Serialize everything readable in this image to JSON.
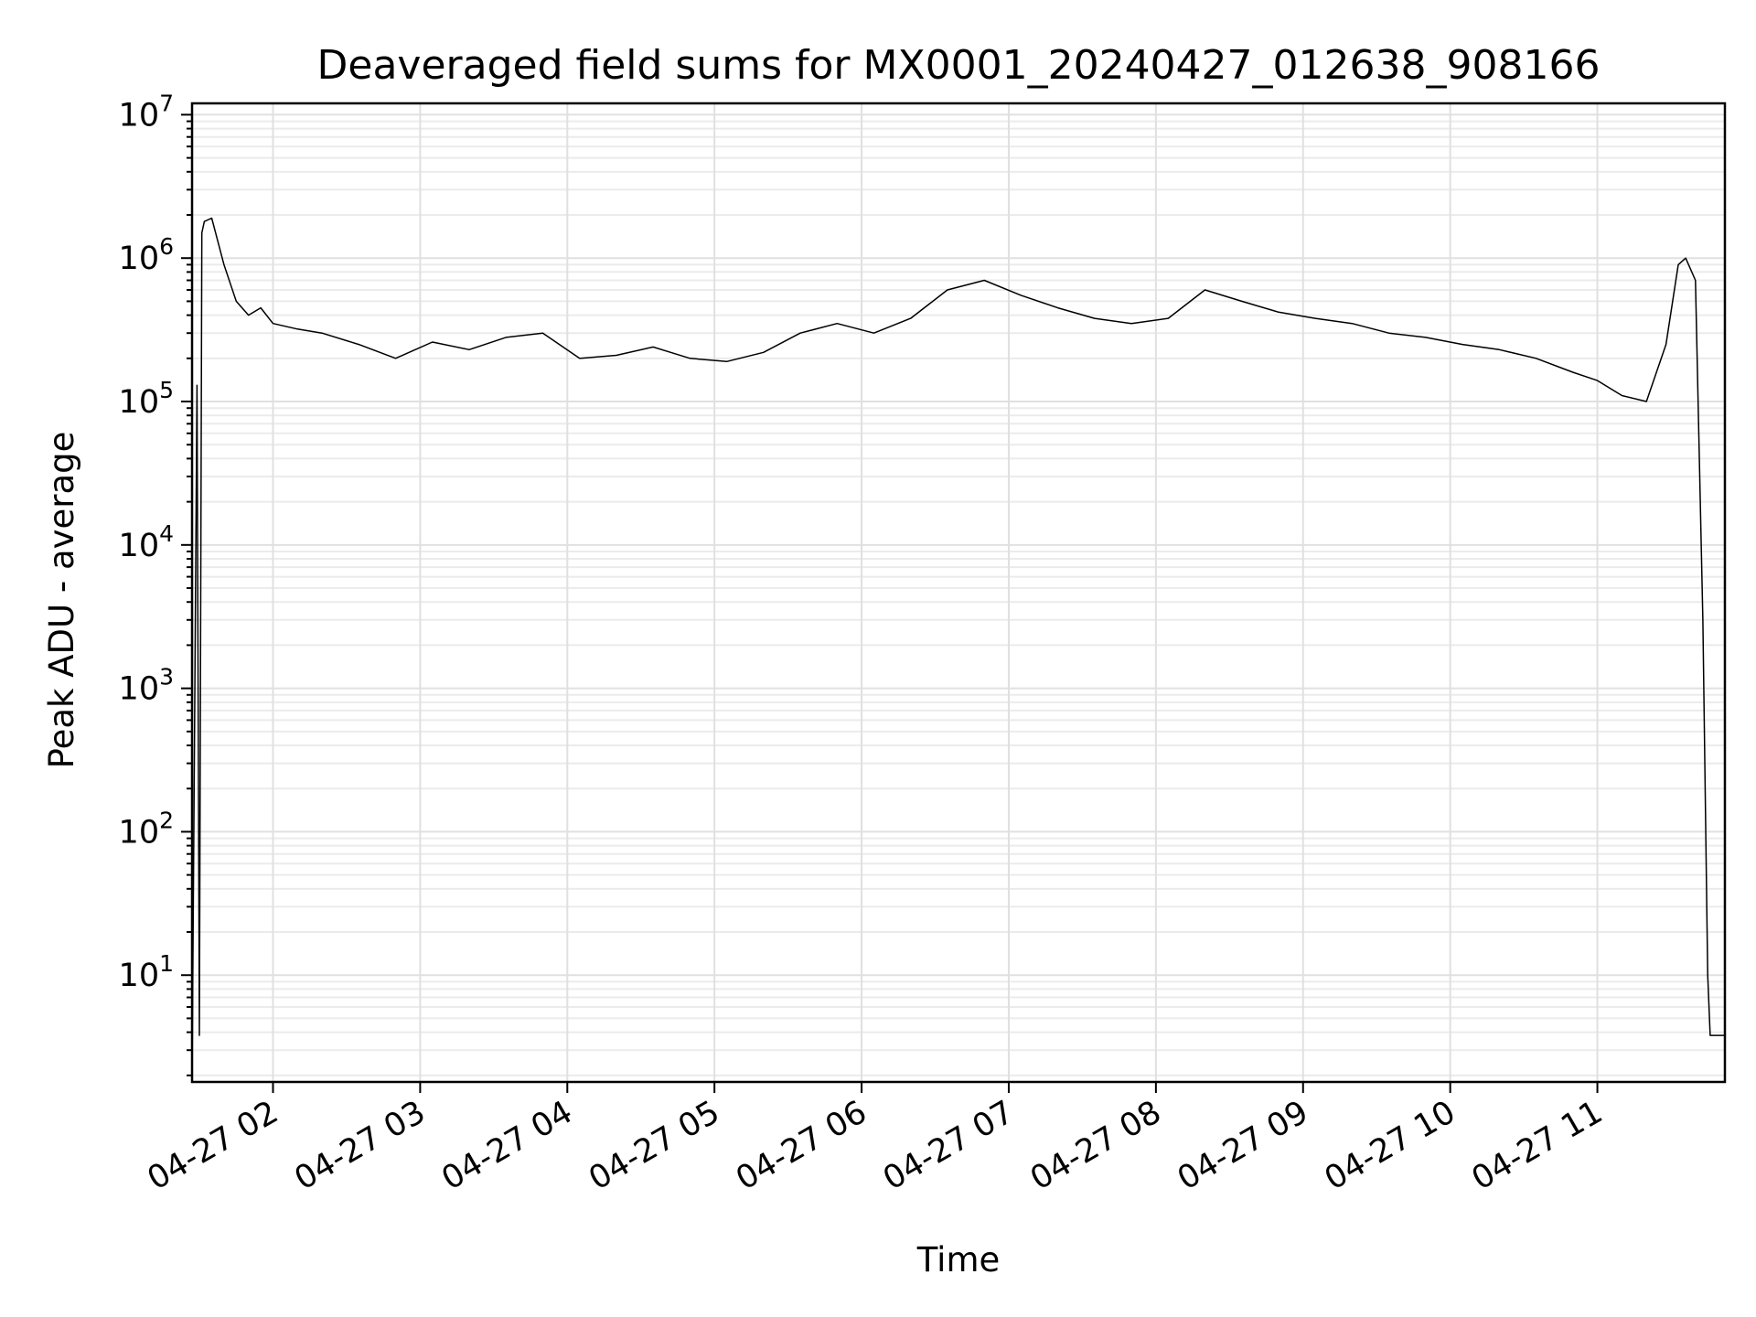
{
  "chart_data": {
    "type": "line",
    "title": "Deaveraged field sums for MX0001_20240427_012638_908166",
    "xlabel": "Time",
    "ylabel": "Peak ADU - average",
    "yscale": "log",
    "ylim": [
      1.8,
      12000000
    ],
    "xlim": [
      "2024-04-27 01:27",
      "2024-04-27 11:52"
    ],
    "x_ticks": [
      "04-27 02",
      "04-27 03",
      "04-27 04",
      "04-27 05",
      "04-27 06",
      "04-27 07",
      "04-27 08",
      "04-27 09",
      "04-27 10",
      "04-27 11"
    ],
    "y_ticks": [
      10,
      100,
      1000,
      10000,
      100000,
      1000000,
      10000000
    ],
    "y_tick_labels": [
      {
        "base": "10",
        "exp": "1"
      },
      {
        "base": "10",
        "exp": "2"
      },
      {
        "base": "10",
        "exp": "3"
      },
      {
        "base": "10",
        "exp": "4"
      },
      {
        "base": "10",
        "exp": "5"
      },
      {
        "base": "10",
        "exp": "6"
      },
      {
        "base": "10",
        "exp": "7"
      }
    ],
    "grid": true,
    "legend": "none",
    "line_color": "#000000",
    "grid_color": "#e0e0e0",
    "series": [
      {
        "x": [
          "2024-04-27 01:27",
          "2024-04-27 01:29",
          "2024-04-27 01:30",
          "2024-04-27 01:31",
          "2024-04-27 01:32",
          "2024-04-27 01:35",
          "2024-04-27 01:40",
          "2024-04-27 01:45",
          "2024-04-27 01:50",
          "2024-04-27 01:55",
          "2024-04-27 02:00",
          "2024-04-27 02:10",
          "2024-04-27 02:20",
          "2024-04-27 02:35",
          "2024-04-27 02:50",
          "2024-04-27 03:05",
          "2024-04-27 03:20",
          "2024-04-27 03:35",
          "2024-04-27 03:50",
          "2024-04-27 04:05",
          "2024-04-27 04:20",
          "2024-04-27 04:35",
          "2024-04-27 04:50",
          "2024-04-27 05:05",
          "2024-04-27 05:20",
          "2024-04-27 05:35",
          "2024-04-27 05:50",
          "2024-04-27 06:05",
          "2024-04-27 06:20",
          "2024-04-27 06:35",
          "2024-04-27 06:50",
          "2024-04-27 07:05",
          "2024-04-27 07:20",
          "2024-04-27 07:35",
          "2024-04-27 07:50",
          "2024-04-27 08:05",
          "2024-04-27 08:20",
          "2024-04-27 08:35",
          "2024-04-27 08:50",
          "2024-04-27 09:05",
          "2024-04-27 09:20",
          "2024-04-27 09:35",
          "2024-04-27 09:50",
          "2024-04-27 10:05",
          "2024-04-27 10:20",
          "2024-04-27 10:35",
          "2024-04-27 10:50",
          "2024-04-27 11:00",
          "2024-04-27 11:10",
          "2024-04-27 11:20",
          "2024-04-27 11:28",
          "2024-04-27 11:33",
          "2024-04-27 11:36",
          "2024-04-27 11:40",
          "2024-04-27 11:43",
          "2024-04-27 11:45",
          "2024-04-27 11:46",
          "2024-04-27 11:47",
          "2024-04-27 11:52"
        ],
        "y": [
          1.8,
          130000,
          3.8,
          1500000,
          1800000,
          1900000,
          900000,
          500000,
          400000,
          450000,
          350000,
          320000,
          300000,
          250000,
          200000,
          260000,
          230000,
          280000,
          300000,
          200000,
          210000,
          240000,
          200000,
          190000,
          220000,
          300000,
          350000,
          300000,
          380000,
          600000,
          700000,
          550000,
          450000,
          380000,
          350000,
          380000,
          600000,
          500000,
          420000,
          380000,
          350000,
          300000,
          280000,
          250000,
          230000,
          200000,
          160000,
          140000,
          110000,
          100000,
          250000,
          900000,
          1000000,
          700000,
          3000,
          10,
          3.8,
          3.8,
          3.8
        ]
      }
    ]
  }
}
